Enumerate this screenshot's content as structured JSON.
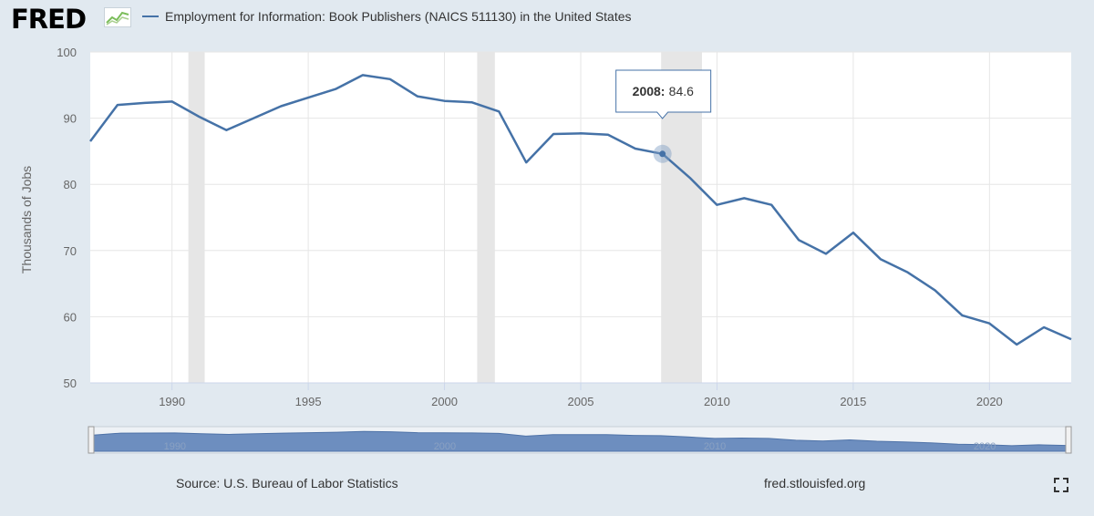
{
  "header": {
    "logo_text": "FRED",
    "logo_icon": "chart-line-icon",
    "legend_label": "Employment for Information: Book Publishers (NAICS 511130) in the United States"
  },
  "chart_data": {
    "type": "line",
    "title": "",
    "xlabel": "",
    "ylabel": "Thousands of Jobs",
    "ylim": [
      50,
      100
    ],
    "yticks": [
      50,
      60,
      70,
      80,
      90,
      100
    ],
    "xlim": [
      1987,
      2023
    ],
    "xticks": [
      1990,
      1995,
      2000,
      2005,
      2010,
      2015,
      2020
    ],
    "grid": true,
    "series": [
      {
        "color": "#4572a7",
        "x": [
          1987,
          1988,
          1989,
          1990,
          1991,
          1992,
          1993,
          1994,
          1995,
          1996,
          1997,
          1998,
          1999,
          2000,
          2001,
          2002,
          2003,
          2004,
          2005,
          2006,
          2007,
          2008,
          2009,
          2010,
          2011,
          2012,
          2013,
          2014,
          2015,
          2016,
          2017,
          2018,
          2019,
          2020,
          2021,
          2022,
          2023
        ],
        "y": [
          86.5,
          92.0,
          92.3,
          92.5,
          90.2,
          88.2,
          90.0,
          91.8,
          93.1,
          94.4,
          96.5,
          95.9,
          93.3,
          92.6,
          92.4,
          91.0,
          83.3,
          87.6,
          87.7,
          87.5,
          85.4,
          84.6,
          81.0,
          76.9,
          77.9,
          76.9,
          71.6,
          69.5,
          72.7,
          68.7,
          66.7,
          64.0,
          60.2,
          59.0,
          55.8,
          58.4,
          56.6
        ]
      }
    ],
    "recessions": [
      [
        1990.6,
        1991.2
      ],
      [
        2001.2,
        2001.85
      ],
      [
        2007.95,
        2009.45
      ]
    ],
    "tooltip": {
      "year": "2008:",
      "value": "84.6",
      "x": 2008,
      "y": 84.6
    },
    "navigator": {
      "labels": [
        "1990",
        "2000",
        "2010",
        "2020"
      ]
    }
  },
  "footer": {
    "source": "Source: U.S. Bureau of Labor Statistics",
    "site": "fred.stlouisfed.org",
    "fullscreen_icon": "fullscreen-icon"
  }
}
